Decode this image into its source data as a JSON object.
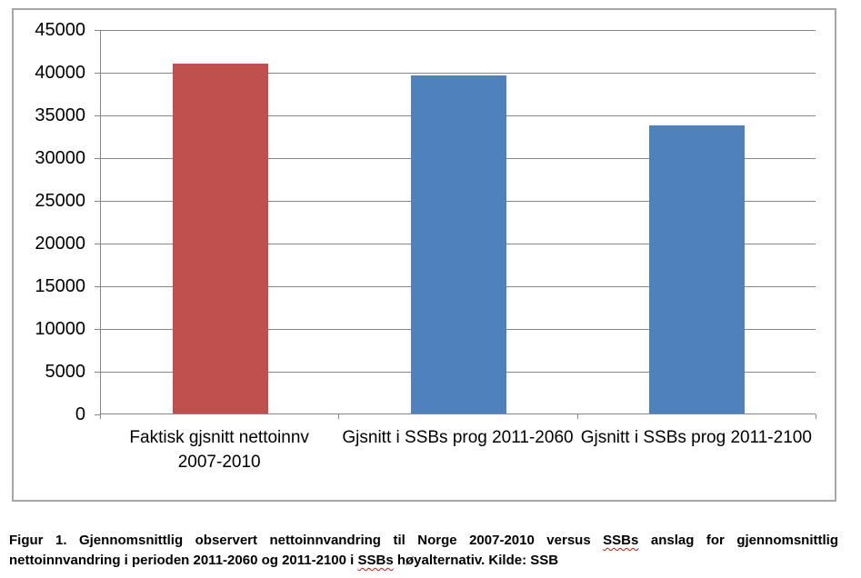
{
  "chart_data": {
    "type": "bar",
    "title": "",
    "xlabel": "",
    "ylabel": "",
    "categories": [
      "Faktisk gjsnitt nettoinnv 2007-2010",
      "Gjsnitt i SSBs prog 2011-2060",
      "Gjsnitt i SSBs prog 2011-2100"
    ],
    "category_label_lines": [
      [
        "Faktisk gjsnitt nettoinnv",
        "2007-2010"
      ],
      [
        "Gjsnitt i SSBs prog 2011-2060"
      ],
      [
        "Gjsnitt i SSBs prog 2011-2100"
      ]
    ],
    "values": [
      41000,
      39600,
      33750
    ],
    "bar_colors": [
      "#c0504d",
      "#4f81bd",
      "#4f81bd"
    ],
    "ylim": [
      0,
      45000
    ],
    "yticks": [
      45000,
      40000,
      35000,
      30000,
      25000,
      20000,
      15000,
      10000,
      5000,
      0
    ],
    "grid": true,
    "legend": false
  },
  "caption": {
    "lines": [
      [
        {
          "text": "Figur 1. Gjennomsnittlig observert nettoinnvandring til Norge 2007-2010 versus "
        },
        {
          "text": "SSBs",
          "misspelled": true
        },
        {
          "text": " anslag for gjennomsnittlig"
        }
      ],
      [
        {
          "text": "nettoinnvandring i perioden 2011-2060 og 2011-2100 i "
        },
        {
          "text": "SSBs",
          "misspelled": true
        },
        {
          "text": " høyalternativ. Kilde: SSB"
        }
      ]
    ]
  },
  "colors": {
    "red_bar": "#c0504d",
    "blue_bar": "#4f81bd",
    "frame_border": "#a6a6a6",
    "gridline": "#878787",
    "text": "#000000",
    "squiggle": "#ff0000"
  }
}
